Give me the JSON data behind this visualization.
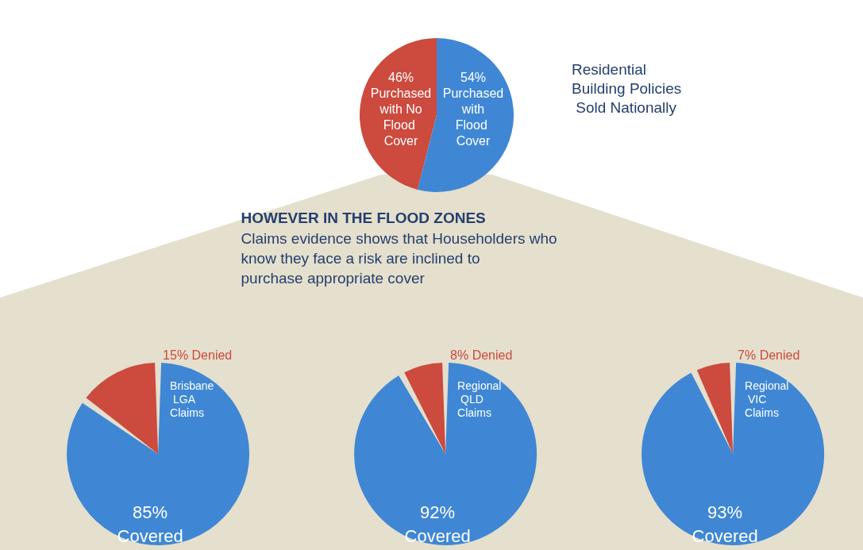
{
  "chart_data": [
    {
      "type": "pie",
      "title": "Residential Building Policies Sold Nationally",
      "categories": [
        "Purchased with No Flood Cover",
        "Purchased with Flood Cover"
      ],
      "values": [
        46,
        54
      ],
      "colors": [
        "#cc4a3e",
        "#3f87d4"
      ],
      "value_labels": [
        "46%",
        "54%"
      ],
      "annotations": [
        "HOWEVER IN THE FLOOD ZONES",
        "Claims evidence shows that Householders who know they face a risk are inclined to purchase appropriate cover"
      ]
    },
    {
      "type": "pie",
      "title": "Brisbane LGA Claims",
      "categories": [
        "Denied",
        "Covered"
      ],
      "values": [
        15,
        85
      ],
      "colors": [
        "#cc4a3e",
        "#3f87d4"
      ],
      "value_labels": [
        "15%",
        "85%"
      ]
    },
    {
      "type": "pie",
      "title": "Regional QLD Claims",
      "categories": [
        "Denied",
        "Covered"
      ],
      "values": [
        8,
        92
      ],
      "colors": [
        "#cc4a3e",
        "#3f87d4"
      ],
      "value_labels": [
        "8%",
        "92%"
      ]
    },
    {
      "type": "pie",
      "title": "Regional VIC Claims",
      "categories": [
        "Denied",
        "Covered"
      ],
      "values": [
        7,
        93
      ],
      "colors": [
        "#cc4a3e",
        "#3f87d4"
      ],
      "value_labels": [
        "7%",
        "93%"
      ]
    }
  ]
}
